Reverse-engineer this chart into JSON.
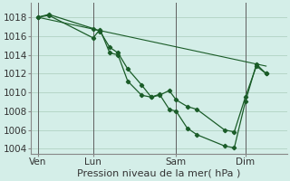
{
  "background_color": "#d4eee8",
  "grid_color": "#aaccbb",
  "line_color": "#1a5c28",
  "xlabel": "Pression niveau de la mer( hPa )",
  "ylim": [
    1003.5,
    1019.5
  ],
  "yticks": [
    1004,
    1006,
    1008,
    1010,
    1012,
    1014,
    1016,
    1018
  ],
  "xtick_labels": [
    "Ven",
    "Lun",
    "Sam",
    "Dim"
  ],
  "xtick_positions": [
    0,
    4,
    10,
    15
  ],
  "vline_positions": [
    0,
    4,
    10,
    15
  ],
  "xlim": [
    -0.5,
    18
  ],
  "series1_x": [
    0,
    0.8,
    4.0,
    4.5,
    5.2,
    5.8,
    6.5,
    7.5,
    8.2,
    8.8,
    9.5,
    10.0,
    10.8,
    11.5,
    13.5,
    14.2,
    15.0,
    15.8,
    16.5
  ],
  "series1_y": [
    1018.0,
    1018.3,
    1016.8,
    1016.5,
    1014.8,
    1014.2,
    1012.5,
    1010.8,
    1009.5,
    1009.7,
    1010.2,
    1009.2,
    1008.5,
    1008.2,
    1006.0,
    1005.8,
    1009.5,
    1012.8,
    1012.0
  ],
  "series2_x": [
    0,
    0.8,
    4.0,
    4.5,
    5.2,
    5.8,
    6.5,
    7.5,
    8.2,
    8.8,
    9.5,
    10.0,
    10.8,
    11.5,
    13.5,
    14.2,
    15.0,
    15.8,
    16.5
  ],
  "series2_y": [
    1018.0,
    1018.2,
    1015.8,
    1016.7,
    1014.2,
    1014.0,
    1011.2,
    1009.7,
    1009.5,
    1009.8,
    1008.2,
    1008.0,
    1006.2,
    1005.5,
    1004.3,
    1004.1,
    1009.0,
    1013.0,
    1012.0
  ],
  "series3_x": [
    0,
    16.5
  ],
  "series3_y": [
    1018.0,
    1012.8
  ],
  "xlabel_fontsize": 8,
  "tick_fontsize": 7.5
}
